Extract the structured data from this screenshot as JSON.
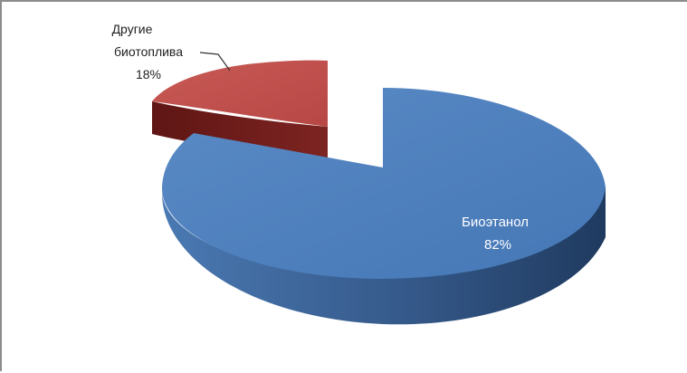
{
  "chart_data": {
    "type": "pie",
    "categories": [
      "Другие биотоплива",
      "Биоэтанол"
    ],
    "values": [
      18,
      82
    ],
    "labels": [
      {
        "name_lines": [
          "Другие",
          "биотоплива"
        ],
        "percent": "18%"
      },
      {
        "name_lines": [
          "Биоэтанол"
        ],
        "percent": "82%"
      }
    ],
    "colors": {
      "other_top": "#c0504d",
      "other_side": "#7a1f1d",
      "bio_top": "#4f81bd",
      "bio_side": "#2e4f78"
    },
    "exploded_slice": "Другие биотоплива",
    "legend": "none",
    "grid": false
  }
}
